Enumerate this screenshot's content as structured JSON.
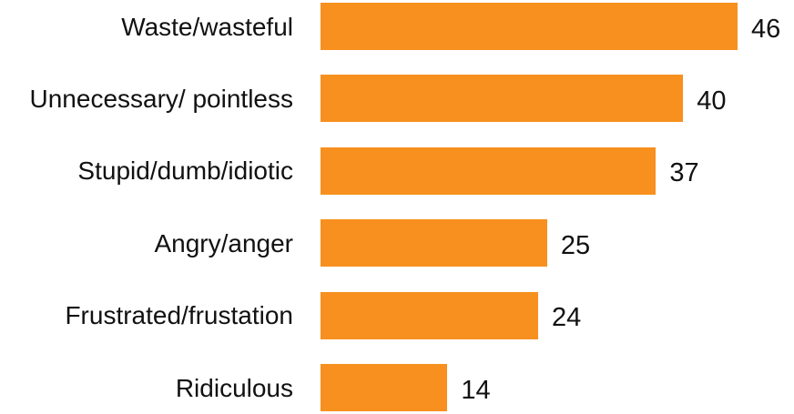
{
  "chart_data": {
    "type": "bar",
    "orientation": "horizontal",
    "categories": [
      "Waste/wasteful",
      "Unnecessary/ pointless",
      "Stupid/dumb/idiotic",
      "Angry/anger",
      "Frustrated/frustation",
      "Ridiculous"
    ],
    "values": [
      46,
      40,
      37,
      25,
      24,
      14
    ],
    "color": "#f7901e"
  }
}
